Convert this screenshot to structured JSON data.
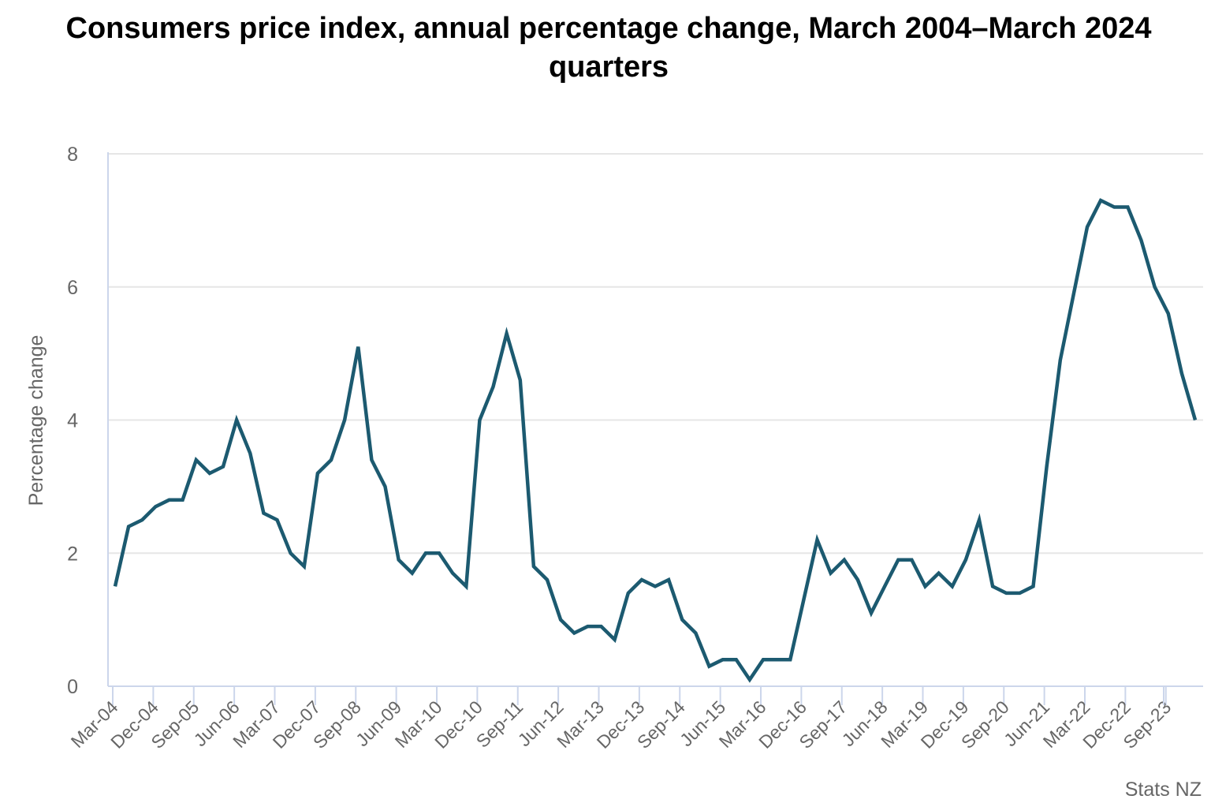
{
  "chart_data": {
    "type": "line",
    "title": "Consumers price index, annual percentage change, March 2004–March 2024 quarters",
    "ylabel": "Percentage change",
    "xlabel": "",
    "ylim": [
      0,
      8
    ],
    "yticks": [
      "0",
      "2",
      "4",
      "6",
      "8"
    ],
    "grid": "horizontal",
    "line_color": "#1c5a70",
    "x": [
      "Mar-04",
      "Jun-04",
      "Sep-04",
      "Dec-04",
      "Mar-05",
      "Jun-05",
      "Sep-05",
      "Dec-05",
      "Mar-06",
      "Jun-06",
      "Sep-06",
      "Dec-06",
      "Mar-07",
      "Jun-07",
      "Sep-07",
      "Dec-07",
      "Mar-08",
      "Jun-08",
      "Sep-08",
      "Dec-08",
      "Mar-09",
      "Jun-09",
      "Sep-09",
      "Dec-09",
      "Mar-10",
      "Jun-10",
      "Sep-10",
      "Dec-10",
      "Mar-11",
      "Jun-11",
      "Sep-11",
      "Dec-11",
      "Mar-12",
      "Jun-12",
      "Sep-12",
      "Dec-12",
      "Mar-13",
      "Jun-13",
      "Sep-13",
      "Dec-13",
      "Mar-14",
      "Jun-14",
      "Sep-14",
      "Dec-14",
      "Mar-15",
      "Jun-15",
      "Sep-15",
      "Dec-15",
      "Mar-16",
      "Jun-16",
      "Sep-16",
      "Dec-16",
      "Mar-17",
      "Jun-17",
      "Sep-17",
      "Dec-17",
      "Mar-18",
      "Jun-18",
      "Sep-18",
      "Dec-18",
      "Mar-19",
      "Jun-19",
      "Sep-19",
      "Dec-19",
      "Mar-20",
      "Jun-20",
      "Sep-20",
      "Dec-20",
      "Mar-21",
      "Jun-21",
      "Sep-21",
      "Dec-21",
      "Mar-22",
      "Jun-22",
      "Sep-22",
      "Dec-22",
      "Mar-23",
      "Jun-23",
      "Sep-23",
      "Dec-23",
      "Mar-24"
    ],
    "xtick_labels": [
      "Mar-04",
      "Dec-04",
      "Sep-05",
      "Jun-06",
      "Mar-07",
      "Dec-07",
      "Sep-08",
      "Jun-09",
      "Mar-10",
      "Dec-10",
      "Sep-11",
      "Jun-12",
      "Mar-13",
      "Dec-13",
      "Sep-14",
      "Jun-15",
      "Mar-16",
      "Dec-16",
      "Sep-17",
      "Jun-18",
      "Mar-19",
      "Dec-19",
      "Sep-20",
      "Jun-21",
      "Mar-22",
      "Dec-22",
      "Sep-23"
    ],
    "series": [
      {
        "values": [
          1.5,
          2.4,
          2.5,
          2.7,
          2.8,
          2.8,
          3.4,
          3.2,
          3.3,
          4.0,
          3.5,
          2.6,
          2.5,
          2.0,
          1.8,
          3.2,
          3.4,
          4.0,
          5.1,
          3.4,
          3.0,
          1.9,
          1.7,
          2.0,
          2.0,
          1.7,
          1.5,
          4.0,
          4.5,
          5.3,
          4.6,
          1.8,
          1.6,
          1.0,
          0.8,
          0.9,
          0.9,
          0.7,
          1.4,
          1.6,
          1.5,
          1.6,
          1.0,
          0.8,
          0.3,
          0.4,
          0.4,
          0.1,
          0.4,
          0.4,
          0.4,
          1.3,
          2.2,
          1.7,
          1.9,
          1.6,
          1.1,
          1.5,
          1.9,
          1.9,
          1.5,
          1.7,
          1.5,
          1.9,
          2.5,
          1.5,
          1.4,
          1.4,
          1.5,
          3.3,
          4.9,
          5.9,
          6.9,
          7.3,
          7.2,
          7.2,
          6.7,
          6.0,
          5.6,
          4.7,
          4.0
        ]
      }
    ]
  },
  "credit": "Stats NZ"
}
